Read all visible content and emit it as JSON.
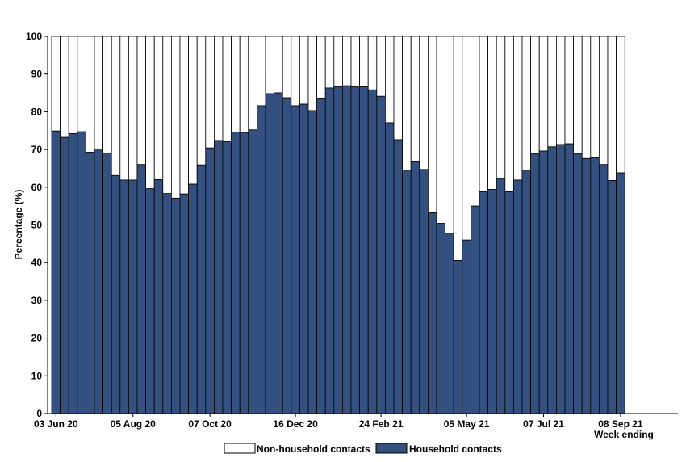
{
  "chart_data": {
    "type": "bar",
    "stacked": true,
    "ylabel": "Percentage (%)",
    "xlabel": "Week ending",
    "ylim": [
      0,
      100
    ],
    "yticks": [
      0,
      10,
      20,
      30,
      40,
      50,
      60,
      70,
      80,
      90,
      100
    ],
    "xtick_labels": [
      "03 Jun 20",
      "05 Aug 20",
      "07 Oct 20",
      "16 Dec 20",
      "24 Feb 21",
      "05 May 21",
      "07 Jul 21",
      "08 Sep 21"
    ],
    "xtick_positions": [
      0,
      9,
      18,
      28,
      38,
      48,
      57,
      66
    ],
    "legend_position": "bottom",
    "colors": {
      "household": "#34507e",
      "non_household": "#ffffff",
      "outline": "#000000"
    },
    "series": [
      {
        "name": "Household contacts",
        "values": [
          74.9,
          73.2,
          74.2,
          74.7,
          69.3,
          70.1,
          69.0,
          63.1,
          61.9,
          61.9,
          66.0,
          59.6,
          62.0,
          58.3,
          57.1,
          58.2,
          60.8,
          65.9,
          70.4,
          72.4,
          72.1,
          74.6,
          74.5,
          75.2,
          81.6,
          84.8,
          85.0,
          83.7,
          81.6,
          82.0,
          80.3,
          83.6,
          86.3,
          86.6,
          86.9,
          86.6,
          86.6,
          85.8,
          84.1,
          77.1,
          72.6,
          64.5,
          66.9,
          64.7,
          53.2,
          50.4,
          47.8,
          40.6,
          46.0,
          55.0,
          58.8,
          59.4,
          62.3,
          58.8,
          61.9,
          64.5,
          68.8,
          69.6,
          70.7,
          71.3,
          71.5,
          68.8,
          67.6,
          67.8,
          66.0,
          61.8,
          63.8
        ]
      },
      {
        "name": "Non-household contacts",
        "values": [
          25.1,
          26.8,
          25.8,
          25.3,
          30.7,
          29.9,
          31.0,
          36.9,
          38.1,
          38.1,
          34.0,
          40.4,
          38.0,
          41.7,
          42.9,
          41.8,
          39.2,
          34.1,
          29.6,
          27.6,
          27.9,
          25.4,
          25.5,
          24.8,
          18.4,
          15.2,
          15.0,
          16.3,
          18.4,
          18.0,
          19.7,
          16.4,
          13.7,
          13.4,
          13.1,
          13.4,
          13.4,
          14.2,
          15.9,
          22.9,
          27.4,
          35.5,
          33.1,
          35.3,
          46.8,
          49.6,
          52.2,
          59.4,
          54.0,
          45.0,
          41.2,
          40.6,
          37.7,
          41.2,
          38.1,
          35.5,
          31.2,
          30.4,
          29.3,
          28.7,
          28.5,
          31.2,
          32.4,
          32.2,
          34.0,
          38.2,
          36.2
        ]
      }
    ],
    "legend": [
      {
        "label": "Non-household contacts",
        "color": "#ffffff"
      },
      {
        "label": "Household contacts",
        "color": "#34507e"
      }
    ]
  }
}
